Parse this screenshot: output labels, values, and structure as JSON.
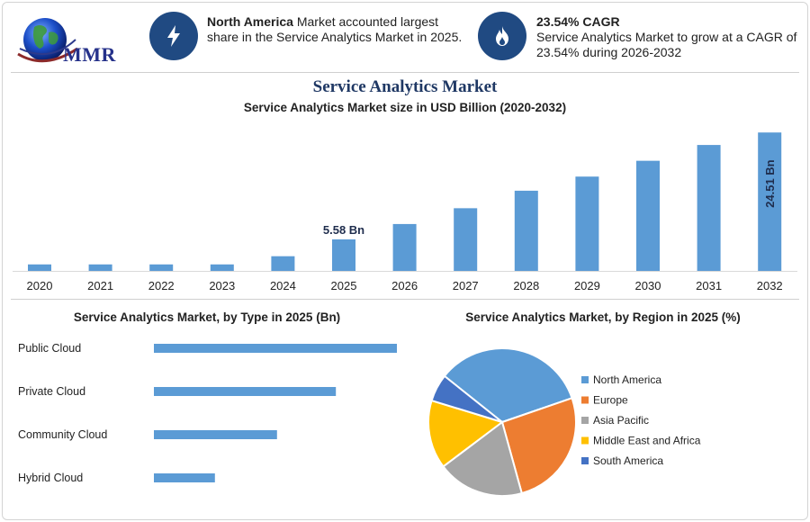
{
  "logo": {
    "text": "MMR"
  },
  "info_cards": [
    {
      "icon": "lightning-icon",
      "bold": "North America",
      "text": " Market accounted largest share in the Service Analytics Market in 2025."
    },
    {
      "icon": "flame-icon",
      "bold": "23.54% CAGR",
      "text": "Service Analytics Market to grow at a CAGR of 23.54% during 2026-2032"
    }
  ],
  "main": {
    "title": "Service Analytics Market",
    "subtitle": "Service Analytics Market size in USD Billion (2020-2032)"
  },
  "colors": {
    "bar": "#5b9bd5",
    "north_america": "#5b9bd5",
    "europe": "#ed7d31",
    "asia_pacific": "#a5a5a5",
    "mea": "#ffc000",
    "south_america": "#4472c4",
    "navy": "#204a82"
  },
  "chart_data": [
    {
      "type": "bar",
      "title": "Service Analytics Market size in USD Billion (2020-2032)",
      "categories": [
        "2020",
        "2021",
        "2022",
        "2023",
        "2024",
        "2025",
        "2026",
        "2027",
        "2028",
        "2029",
        "2030",
        "2031",
        "2032"
      ],
      "values": [
        1.15,
        1.15,
        1.15,
        1.15,
        2.6,
        5.58,
        8.3,
        11.1,
        14.2,
        16.7,
        19.5,
        22.3,
        24.51
      ],
      "annotations": [
        {
          "category": "2025",
          "label": "5.58 Bn"
        },
        {
          "category": "2032",
          "label": "24.51 Bn"
        }
      ],
      "ylim": [
        0,
        25.5
      ],
      "grid": false
    },
    {
      "type": "bar",
      "orientation": "horizontal",
      "title": "Service Analytics Market, by Type in 2025 (Bn)",
      "categories": [
        "Public Cloud",
        "Private Cloud",
        "Community Cloud",
        "Hybrid Cloud"
      ],
      "values": [
        2.27,
        1.7,
        1.15,
        0.57
      ],
      "xlim": [
        0,
        2.27
      ]
    },
    {
      "type": "pie",
      "title": "Service Analytics Market, by Region in 2025 (%)",
      "categories": [
        "North America",
        "Europe",
        "Asia Pacific",
        "Middle East and Africa",
        "South America"
      ],
      "values": [
        34,
        26,
        19,
        15,
        6
      ],
      "legend": "right"
    }
  ]
}
